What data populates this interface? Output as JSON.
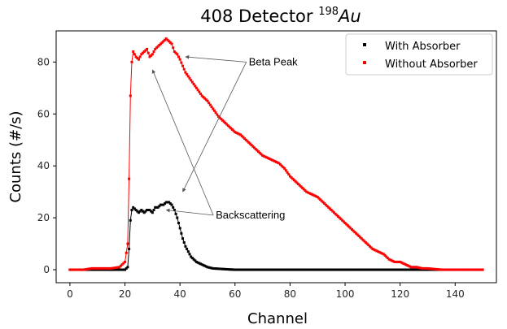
{
  "chart_data": {
    "type": "scatter",
    "title_main": "408 Detector ",
    "title_sup": "198",
    "title_italic": "Au",
    "xlabel": "Channel",
    "ylabel": "Counts (#/s)",
    "xlim": [
      -5,
      155
    ],
    "ylim": [
      -5,
      92
    ],
    "xticks": [
      0,
      20,
      40,
      60,
      80,
      100,
      120,
      140
    ],
    "yticks": [
      0,
      20,
      40,
      60,
      80
    ],
    "legend_position": "top-right",
    "series": [
      {
        "name": "With Absorber",
        "color": "#000000",
        "points": [
          [
            0,
            0
          ],
          [
            5,
            0
          ],
          [
            10,
            0
          ],
          [
            15,
            0
          ],
          [
            18,
            0
          ],
          [
            20,
            0
          ],
          [
            21,
            1
          ],
          [
            21.5,
            8
          ],
          [
            22,
            19
          ],
          [
            22.5,
            23
          ],
          [
            23,
            24
          ],
          [
            24,
            23
          ],
          [
            25,
            22
          ],
          [
            26,
            23
          ],
          [
            27,
            22
          ],
          [
            28,
            23
          ],
          [
            29,
            23
          ],
          [
            30,
            22
          ],
          [
            31,
            24
          ],
          [
            32,
            24
          ],
          [
            33,
            25
          ],
          [
            34,
            25
          ],
          [
            35,
            26
          ],
          [
            36,
            26
          ],
          [
            37,
            25
          ],
          [
            38,
            23
          ],
          [
            39,
            20
          ],
          [
            40,
            16
          ],
          [
            41,
            12
          ],
          [
            42,
            9
          ],
          [
            43,
            7
          ],
          [
            44,
            5
          ],
          [
            45,
            4
          ],
          [
            46,
            3
          ],
          [
            47,
            2.5
          ],
          [
            48,
            2
          ],
          [
            49,
            1.5
          ],
          [
            50,
            1
          ],
          [
            52,
            0.5
          ],
          [
            55,
            0.3
          ],
          [
            58,
            0.1
          ],
          [
            60,
            0
          ],
          [
            65,
            0
          ],
          [
            70,
            0
          ],
          [
            80,
            0
          ],
          [
            90,
            0
          ],
          [
            100,
            0
          ],
          [
            110,
            0
          ],
          [
            120,
            0
          ],
          [
            130,
            0
          ],
          [
            140,
            0
          ],
          [
            150,
            0
          ]
        ]
      },
      {
        "name": "Without Absorber",
        "color": "#ff0000",
        "points": [
          [
            0,
            0
          ],
          [
            5,
            0
          ],
          [
            8,
            0.5
          ],
          [
            10,
            0.5
          ],
          [
            12,
            0.5
          ],
          [
            15,
            0.5
          ],
          [
            18,
            1
          ],
          [
            20,
            3
          ],
          [
            21,
            10
          ],
          [
            21.5,
            35
          ],
          [
            22,
            67
          ],
          [
            22.5,
            80
          ],
          [
            23,
            84
          ],
          [
            24,
            82
          ],
          [
            25,
            81
          ],
          [
            26,
            83
          ],
          [
            27,
            84
          ],
          [
            28,
            85
          ],
          [
            29,
            82
          ],
          [
            30,
            83
          ],
          [
            31,
            85
          ],
          [
            32,
            86
          ],
          [
            33,
            87
          ],
          [
            34,
            88
          ],
          [
            35,
            89
          ],
          [
            36,
            88
          ],
          [
            37,
            87
          ],
          [
            38,
            84
          ],
          [
            39,
            83
          ],
          [
            40,
            81
          ],
          [
            42,
            76
          ],
          [
            44,
            73
          ],
          [
            46,
            70
          ],
          [
            48,
            67
          ],
          [
            50,
            65
          ],
          [
            52,
            62
          ],
          [
            54,
            59
          ],
          [
            56,
            57
          ],
          [
            58,
            55
          ],
          [
            60,
            53
          ],
          [
            62,
            52
          ],
          [
            64,
            50
          ],
          [
            66,
            48
          ],
          [
            68,
            46
          ],
          [
            70,
            44
          ],
          [
            72,
            43
          ],
          [
            74,
            42
          ],
          [
            76,
            41
          ],
          [
            78,
            39
          ],
          [
            80,
            36
          ],
          [
            82,
            34
          ],
          [
            84,
            32
          ],
          [
            86,
            30
          ],
          [
            88,
            29
          ],
          [
            90,
            28
          ],
          [
            92,
            26
          ],
          [
            94,
            24
          ],
          [
            96,
            22
          ],
          [
            98,
            20
          ],
          [
            100,
            18
          ],
          [
            102,
            16
          ],
          [
            104,
            14
          ],
          [
            106,
            12
          ],
          [
            108,
            10
          ],
          [
            110,
            8
          ],
          [
            112,
            7
          ],
          [
            114,
            6
          ],
          [
            116,
            4
          ],
          [
            118,
            3
          ],
          [
            120,
            3
          ],
          [
            122,
            2
          ],
          [
            124,
            1
          ],
          [
            126,
            1
          ],
          [
            128,
            0.5
          ],
          [
            130,
            0.5
          ],
          [
            135,
            0
          ],
          [
            140,
            0
          ],
          [
            145,
            0
          ],
          [
            150,
            0
          ]
        ]
      }
    ],
    "annotations": [
      {
        "text": "Beta Peak",
        "text_at": [
          65,
          80
        ],
        "targets": [
          [
            42,
            82
          ],
          [
            41,
            30
          ]
        ]
      },
      {
        "text": "Backscattering",
        "text_at": [
          53,
          21
        ],
        "targets": [
          [
            30,
            77
          ],
          [
            35,
            23
          ]
        ]
      }
    ]
  }
}
